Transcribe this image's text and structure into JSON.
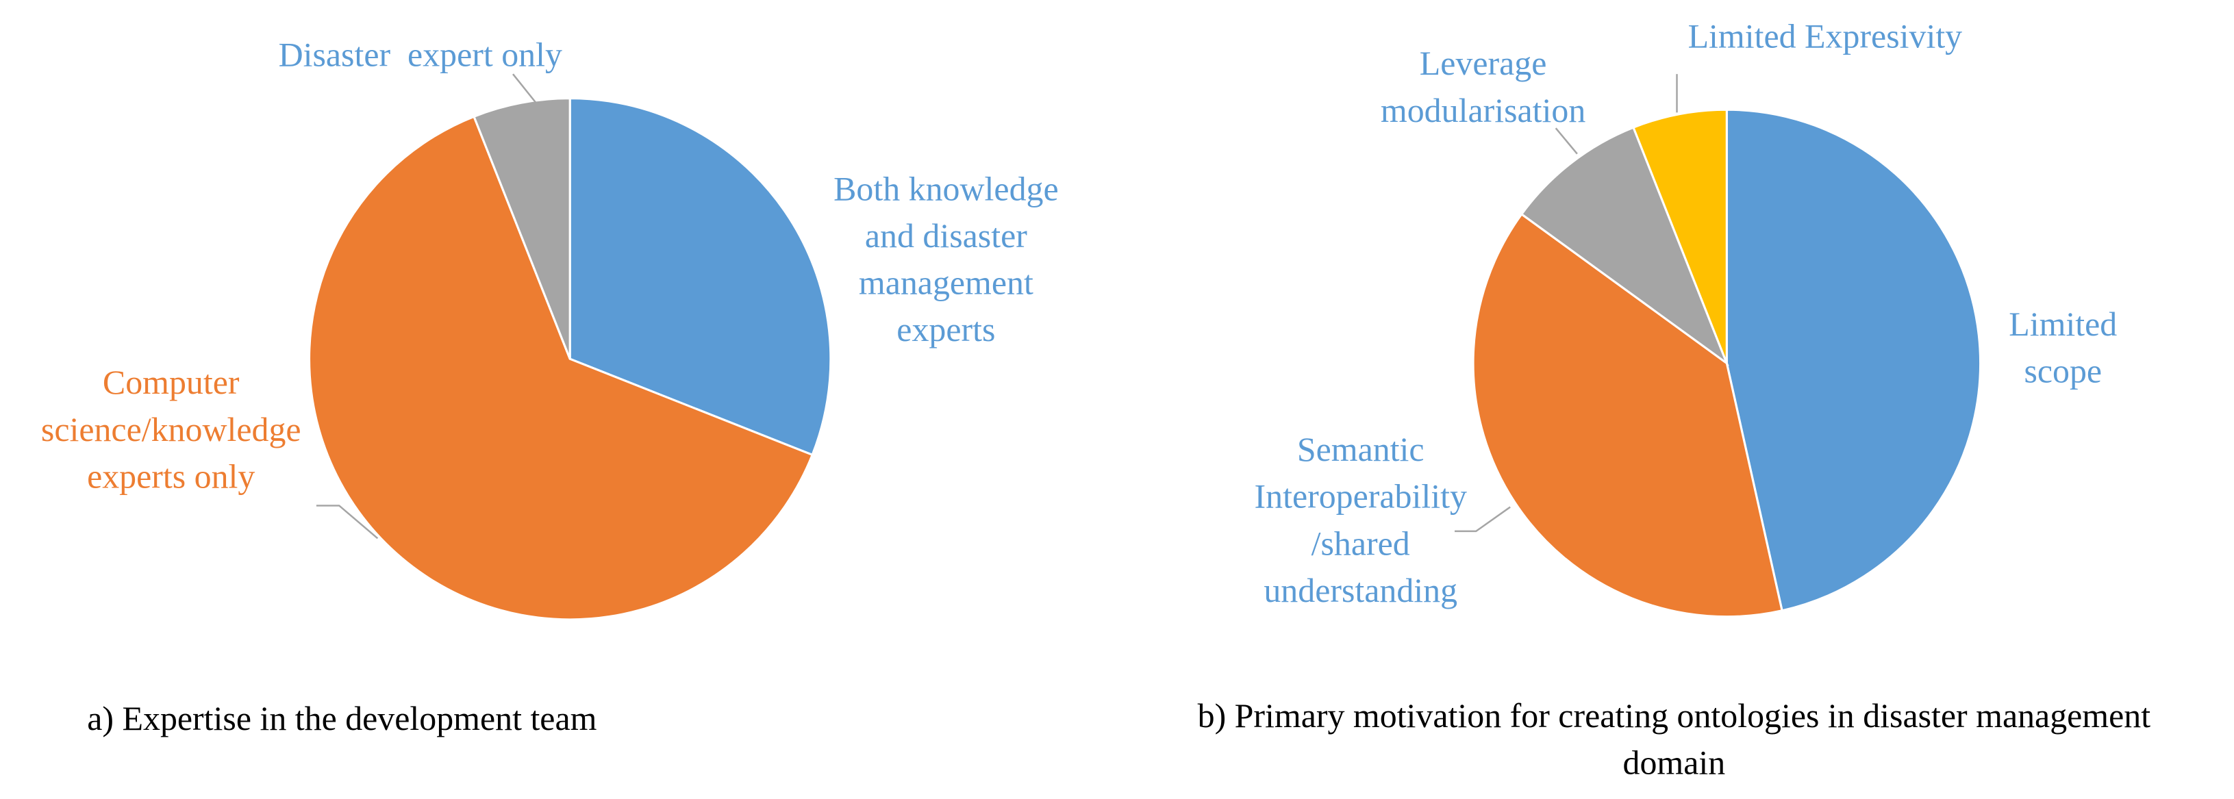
{
  "chart_data": [
    {
      "type": "pie",
      "title": [
        "a) Expertise in the development team"
      ],
      "categories": [
        [
          "Both knowledge",
          "and disaster",
          "management",
          "experts"
        ],
        [
          "Computer",
          "science/knowledge",
          "experts only"
        ],
        [
          "Disaster  expert only"
        ]
      ],
      "values": [
        31,
        63,
        6
      ],
      "colors": [
        "#5b9bd5",
        "#ed7d31",
        "#a5a5a5"
      ],
      "label_colors": [
        "#5b9bd5",
        "#ed7d31",
        "#5b9bd5"
      ]
    },
    {
      "type": "pie",
      "title": [
        "b) Primary motivation for creating ontologies in disaster management",
        "domain"
      ],
      "categories": [
        [
          "Limited",
          "scope"
        ],
        [
          "Semantic",
          "Interoperability",
          "/shared",
          "understanding"
        ],
        [
          "Leverage",
          "modularisation"
        ],
        [
          "Limited Expresivity"
        ]
      ],
      "values": [
        46.5,
        38.5,
        9,
        6
      ],
      "colors": [
        "#5b9bd5",
        "#ed7d31",
        "#a5a5a5",
        "#ffc000"
      ],
      "label_colors": [
        "#5b9bd5",
        "#5b9bd5",
        "#5b9bd5",
        "#5b9bd5"
      ]
    }
  ]
}
